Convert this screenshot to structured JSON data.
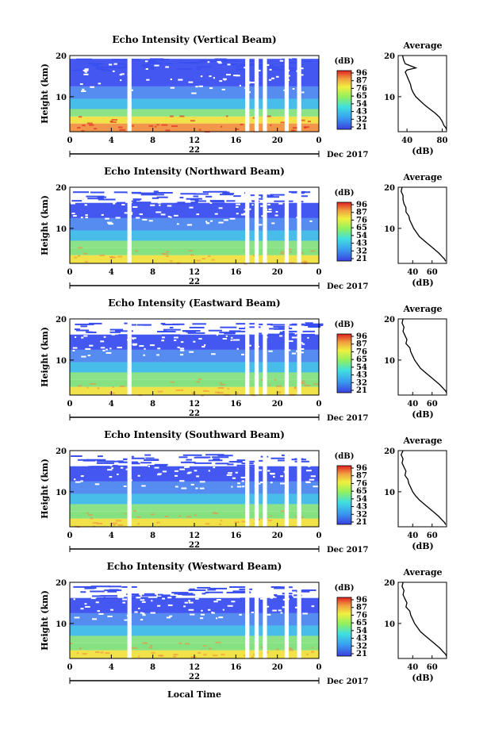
{
  "shared": {
    "y_axis_label": "Height (km)",
    "y_ticks": [
      20,
      10
    ],
    "x_ticks": [
      "0",
      "4",
      "8",
      "12",
      "16",
      "20",
      "0"
    ],
    "date_day": "22",
    "date_month": "Dec 2017",
    "colorbar_unit": "(dB)",
    "colorbar_labels": [
      "96",
      "87",
      "76",
      "65",
      "54",
      "43",
      "32",
      "21"
    ],
    "profile_title": "Average",
    "profile_xlabel": "(dB)",
    "bottom_xlabel": "Local Time",
    "colors": {
      "white": "#ffffff",
      "blue": "#3a4ff0",
      "cyan": "#35b6e8",
      "green": "#7fe07a",
      "yellow": "#f0e040",
      "orange": "#f09040",
      "red": "#e02020"
    },
    "data_gaps_hours": [
      [
        5.55,
        5.95
      ],
      [
        16.9,
        17.3
      ],
      [
        17.8,
        18.2
      ],
      [
        18.6,
        19.0
      ],
      [
        20.7,
        21.1
      ],
      [
        21.9,
        22.3
      ]
    ]
  },
  "chart_data": [
    {
      "type": "heatmap",
      "title": "Echo Intensity (Vertical Beam)",
      "xlabel": "",
      "ylabel": "Height (km)",
      "xlim": [
        0,
        24
      ],
      "ylim": [
        1.5,
        20
      ],
      "colorbar_range": [
        21,
        96
      ],
      "profile": {
        "xticks": [
          "40",
          "80"
        ],
        "xlim": [
          30,
          85
        ],
        "points": [
          [
            35,
            20
          ],
          [
            36,
            19
          ],
          [
            38,
            18
          ],
          [
            50,
            17
          ],
          [
            40,
            16.5
          ],
          [
            38,
            16
          ],
          [
            40,
            15
          ],
          [
            42,
            14
          ],
          [
            44,
            13
          ],
          [
            45,
            12
          ],
          [
            47,
            11
          ],
          [
            50,
            10
          ],
          [
            55,
            9
          ],
          [
            60,
            8
          ],
          [
            66,
            7
          ],
          [
            72,
            6
          ],
          [
            77,
            5
          ],
          [
            80,
            4
          ],
          [
            82,
            3
          ],
          [
            84,
            2.5
          ],
          [
            85,
            2
          ]
        ]
      }
    },
    {
      "type": "heatmap",
      "title": "Echo Intensity (Northward Beam)",
      "xlabel": "",
      "ylabel": "Height (km)",
      "xlim": [
        0,
        24
      ],
      "ylim": [
        1.5,
        20
      ],
      "colorbar_range": [
        21,
        96
      ],
      "profile": {
        "xticks": [
          "40",
          "60"
        ],
        "xlim": [
          25,
          75
        ],
        "points": [
          [
            29,
            20
          ],
          [
            28,
            19
          ],
          [
            30,
            18
          ],
          [
            30,
            17
          ],
          [
            31,
            16
          ],
          [
            33,
            15
          ],
          [
            33,
            14
          ],
          [
            36,
            13
          ],
          [
            37,
            12
          ],
          [
            39,
            11
          ],
          [
            41,
            10
          ],
          [
            44,
            9
          ],
          [
            47,
            8
          ],
          [
            52,
            7
          ],
          [
            57,
            6
          ],
          [
            62,
            5
          ],
          [
            67,
            4
          ],
          [
            71,
            3
          ],
          [
            73,
            2.5
          ],
          [
            74,
            2
          ]
        ]
      }
    },
    {
      "type": "heatmap",
      "title": "Echo Intensity (Eastward Beam)",
      "xlabel": "",
      "ylabel": "Height (km)",
      "xlim": [
        0,
        24
      ],
      "ylim": [
        1.5,
        20
      ],
      "colorbar_range": [
        21,
        96
      ],
      "profile": {
        "xticks": [
          "40",
          "60"
        ],
        "xlim": [
          25,
          75
        ],
        "points": [
          [
            30,
            20
          ],
          [
            29,
            19
          ],
          [
            31,
            18
          ],
          [
            30,
            17
          ],
          [
            32,
            16
          ],
          [
            34,
            15
          ],
          [
            33,
            14
          ],
          [
            37,
            13
          ],
          [
            38,
            12
          ],
          [
            40,
            11
          ],
          [
            42,
            10
          ],
          [
            45,
            9
          ],
          [
            48,
            8
          ],
          [
            53,
            7
          ],
          [
            58,
            6
          ],
          [
            63,
            5
          ],
          [
            68,
            4
          ],
          [
            72,
            3
          ],
          [
            74,
            2.5
          ],
          [
            75,
            2
          ]
        ]
      }
    },
    {
      "type": "heatmap",
      "title": "Echo Intensity (Southward Beam)",
      "xlabel": "",
      "ylabel": "Height (km)",
      "xlim": [
        0,
        24
      ],
      "ylim": [
        1.5,
        20
      ],
      "colorbar_range": [
        21,
        96
      ],
      "profile": {
        "xticks": [
          "40",
          "60"
        ],
        "xlim": [
          25,
          75
        ],
        "points": [
          [
            30,
            20
          ],
          [
            28,
            19
          ],
          [
            30,
            18
          ],
          [
            29,
            17
          ],
          [
            31,
            16
          ],
          [
            33,
            15
          ],
          [
            32,
            14
          ],
          [
            35,
            13
          ],
          [
            36,
            12
          ],
          [
            38,
            11
          ],
          [
            40,
            10
          ],
          [
            43,
            9
          ],
          [
            47,
            8
          ],
          [
            52,
            7
          ],
          [
            57,
            6
          ],
          [
            62,
            5
          ],
          [
            67,
            4
          ],
          [
            71,
            3
          ],
          [
            73,
            2.5
          ],
          [
            74,
            2
          ]
        ]
      }
    },
    {
      "type": "heatmap",
      "title": "Echo Intensity (Westward Beam)",
      "xlabel": "",
      "ylabel": "Height (km)",
      "xlim": [
        0,
        24
      ],
      "ylim": [
        1.5,
        20
      ],
      "colorbar_range": [
        21,
        96
      ],
      "profile": {
        "xticks": [
          "40",
          "60"
        ],
        "xlim": [
          25,
          75
        ],
        "points": [
          [
            30,
            20
          ],
          [
            29,
            19
          ],
          [
            31,
            18
          ],
          [
            30,
            17
          ],
          [
            32,
            16
          ],
          [
            34,
            15
          ],
          [
            33,
            14
          ],
          [
            37,
            13
          ],
          [
            38,
            12
          ],
          [
            40,
            11
          ],
          [
            42,
            10
          ],
          [
            45,
            9
          ],
          [
            48,
            8
          ],
          [
            53,
            7
          ],
          [
            58,
            6
          ],
          [
            63,
            5
          ],
          [
            68,
            4
          ],
          [
            72,
            3
          ],
          [
            74,
            2.5
          ],
          [
            75,
            2
          ]
        ]
      }
    }
  ]
}
